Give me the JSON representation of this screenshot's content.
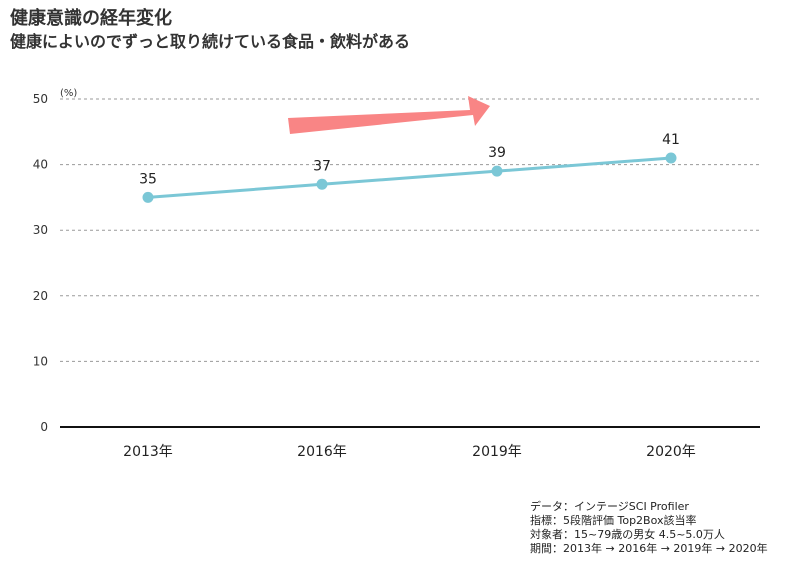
{
  "header": {
    "title": "健康意識の経年変化",
    "subtitle": "健康によいのでずっと取り続けている食品・飲料がある"
  },
  "chart_data": {
    "type": "line",
    "categories": [
      "2013年",
      "2016年",
      "2019年",
      "2020年"
    ],
    "series": [
      {
        "values": [
          35,
          37,
          39,
          41
        ]
      }
    ],
    "data_labels": [
      "35",
      "37",
      "39",
      "41"
    ],
    "y_unit": "(%)",
    "yticks": [
      "0",
      "10",
      "20",
      "30",
      "40",
      "50"
    ],
    "ylim": [
      0,
      50
    ],
    "grid": "dashed-horizontal",
    "annotation": "trend-arrow-up",
    "colors": {
      "line": "#7bc7d6",
      "arrow": "#f98585",
      "grid": "#9a9a9a",
      "axis": "#111111"
    }
  },
  "notes": [
    "データ：インテージSCI Profiler",
    "指標：5段階評価 Top2Box該当率",
    "対象者：15~79歳の男女 4.5~5.0万人",
    "期間：2013年 → 2016年 → 2019年 → 2020年"
  ]
}
